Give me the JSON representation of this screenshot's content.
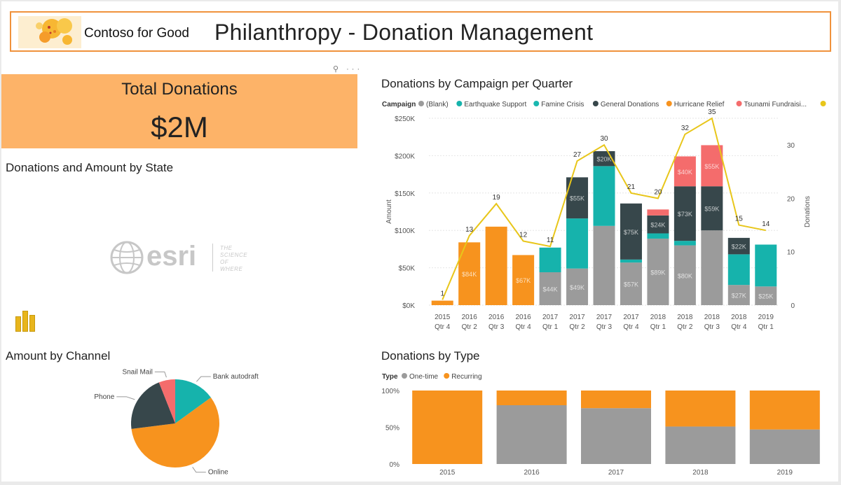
{
  "header": {
    "org_name": "Contoso for Good",
    "title": "Philanthropy - Donation Management"
  },
  "tile_menu": {
    "pin": "⚲",
    "more": "···"
  },
  "kpi": {
    "label": "Total Donations",
    "value": "$2M"
  },
  "map": {
    "title": "Donations and Amount by State",
    "logo_word": "esri",
    "logo_tagline": [
      "THE",
      "SCIENCE",
      "OF",
      "WHERE"
    ]
  },
  "campaign_chart": {
    "title": "Donations by Campaign per Quarter",
    "legend_title": "Campaign",
    "legend": [
      {
        "name": "(Blank)",
        "color": "#9b9b9b"
      },
      {
        "name": "Earthquake Support",
        "color": "#16b3ac"
      },
      {
        "name": "Famine Crisis",
        "color": "#1ab8b0"
      },
      {
        "name": "General Donations",
        "color": "#37474b"
      },
      {
        "name": "Hurricane Relief",
        "color": "#f7931e"
      },
      {
        "name": "Tsunami Fundraisi...",
        "color": "#f46c6c"
      },
      {
        "name": "Donations",
        "color": "#e8c61a"
      }
    ]
  },
  "channel_chart": {
    "title": "Amount by Channel"
  },
  "type_chart": {
    "title": "Donations by Type",
    "legend_title": "Type",
    "legend": [
      {
        "name": "One-time",
        "color": "#9b9b9b"
      },
      {
        "name": "Recurring",
        "color": "#f7931e"
      }
    ]
  },
  "chart_data": [
    {
      "type": "bar",
      "title": "Donations by Campaign per Quarter",
      "stacked": true,
      "categories": [
        "2015 Qtr 4",
        "2016 Qtr 2",
        "2016 Qtr 3",
        "2016 Qtr 4",
        "2017 Qtr 1",
        "2017 Qtr 2",
        "2017 Qtr 3",
        "2017 Qtr 4",
        "2018 Qtr 1",
        "2018 Qtr 2",
        "2018 Qtr 3",
        "2018 Qtr 4",
        "2019 Qtr 1"
      ],
      "ylabel": "Amount",
      "y2label": "Donations",
      "ylim": [
        0,
        250000
      ],
      "yticks": [
        "$0K",
        "$50K",
        "$100K",
        "$150K",
        "$200K",
        "$250K"
      ],
      "y2lim": [
        0,
        35
      ],
      "y2ticks": [
        "0",
        "10",
        "20",
        "30"
      ],
      "series": [
        {
          "name": "(Blank)",
          "color": "#9b9b9b",
          "values": [
            0,
            0,
            0,
            0,
            44000,
            49000,
            106000,
            57000,
            89000,
            80000,
            100000,
            27000,
            25000
          ],
          "labels": [
            "",
            "",
            "",
            "",
            "$44K",
            "$49K",
            "",
            "$57K",
            "$89K",
            "$80K",
            "",
            "$27K",
            "$25K"
          ]
        },
        {
          "name": "Earthquake Support",
          "color": "#16b3ac",
          "values": [
            0,
            0,
            0,
            0,
            33000,
            67000,
            80000,
            4000,
            7000,
            6000,
            0,
            41000,
            56000
          ],
          "labels": [
            "",
            "",
            "",
            "",
            "",
            "",
            "",
            "",
            "",
            "",
            "",
            "",
            ""
          ]
        },
        {
          "name": "Famine Crisis",
          "color": "#1ab8b0",
          "values": [
            0,
            0,
            0,
            0,
            0,
            0,
            0,
            0,
            0,
            0,
            0,
            0,
            0
          ],
          "labels": [
            "",
            "",
            "",
            "",
            "",
            "",
            "",
            "",
            "",
            "",
            "",
            "",
            ""
          ]
        },
        {
          "name": "General Donations",
          "color": "#37474b",
          "values": [
            0,
            0,
            0,
            0,
            0,
            55000,
            20000,
            75000,
            24000,
            73000,
            59000,
            22000,
            0
          ],
          "labels": [
            "",
            "",
            "",
            "",
            "",
            "$55K",
            "$20K",
            "$75K",
            "$24K",
            "$73K",
            "$59K",
            "$22K",
            ""
          ]
        },
        {
          "name": "Hurricane Relief",
          "color": "#f7931e",
          "values": [
            6000,
            84000,
            105000,
            67000,
            0,
            0,
            0,
            0,
            0,
            0,
            0,
            0,
            0
          ],
          "labels": [
            "",
            "$84K",
            "",
            "$67K",
            "",
            "",
            "",
            "",
            "",
            "",
            "",
            "",
            ""
          ]
        },
        {
          "name": "Tsunami Fundraisi...",
          "color": "#f46c6c",
          "values": [
            0,
            0,
            0,
            0,
            0,
            0,
            0,
            0,
            8000,
            40000,
            55000,
            0,
            0
          ],
          "labels": [
            "",
            "",
            "",
            "",
            "",
            "",
            "",
            "",
            "",
            "$40K",
            "$55K",
            "",
            ""
          ]
        }
      ],
      "line": {
        "name": "Donations",
        "color": "#e8c61a",
        "axis": "right",
        "values": [
          1,
          13,
          19,
          12,
          11,
          27,
          30,
          21,
          20,
          32,
          35,
          15,
          14
        ]
      }
    },
    {
      "type": "pie",
      "title": "Amount by Channel",
      "slices": [
        {
          "label": "Bank autodraft",
          "value": 15,
          "color": "#16b3ac"
        },
        {
          "label": "Online",
          "value": 58,
          "color": "#f7931e"
        },
        {
          "label": "Phone",
          "value": 21,
          "color": "#37474b"
        },
        {
          "label": "Snail Mail",
          "value": 6,
          "color": "#f46c6c"
        }
      ]
    },
    {
      "type": "bar",
      "title": "Donations by Type",
      "stacked_percent": true,
      "categories": [
        "2015",
        "2016",
        "2017",
        "2018",
        "2019"
      ],
      "ylim": [
        0,
        100
      ],
      "yticks": [
        "0%",
        "50%",
        "100%"
      ],
      "series": [
        {
          "name": "One-time",
          "color": "#9b9b9b",
          "values": [
            0,
            80,
            76,
            51,
            47
          ]
        },
        {
          "name": "Recurring",
          "color": "#f7931e",
          "values": [
            100,
            20,
            24,
            49,
            53
          ]
        }
      ]
    }
  ]
}
